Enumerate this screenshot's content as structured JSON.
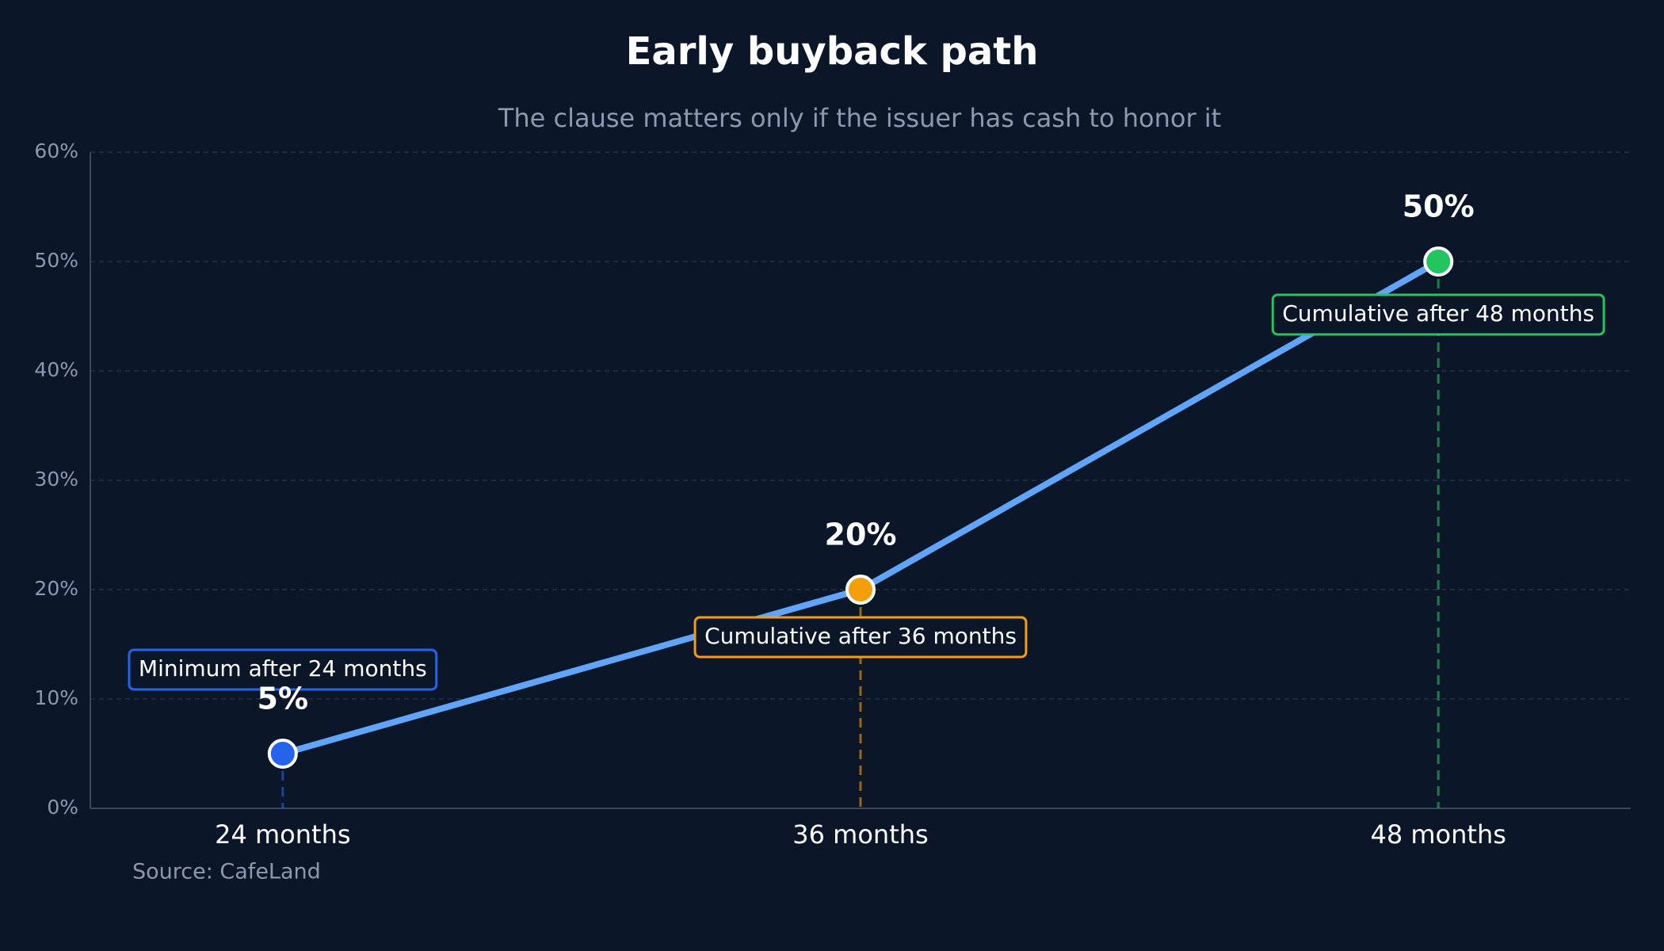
{
  "chart_data": {
    "type": "line",
    "title": "Early buyback path",
    "subtitle": "The clause matters only if the issuer has cash to honor it",
    "source": "Source: CafeLand",
    "categories": [
      "24 months",
      "36 months",
      "48 months"
    ],
    "values": [
      5,
      20,
      50
    ],
    "value_labels": [
      "5%",
      "20%",
      "50%"
    ],
    "line_color": "#60a5fa",
    "point_colors": [
      "#2563eb",
      "#f59e0b",
      "#22c55e"
    ],
    "annotations": [
      "Minimum after 24 months",
      "Cumulative after 36 months",
      "Cumulative after 48 months"
    ],
    "ylim": [
      0,
      60
    ],
    "yticks": [
      {
        "value": 0,
        "label": "0%"
      },
      {
        "value": 10,
        "label": "10%"
      },
      {
        "value": 20,
        "label": "20%"
      },
      {
        "value": 30,
        "label": "30%"
      },
      {
        "value": 40,
        "label": "40%"
      },
      {
        "value": 50,
        "label": "50%"
      },
      {
        "value": 60,
        "label": "60%"
      }
    ],
    "grid": true
  }
}
